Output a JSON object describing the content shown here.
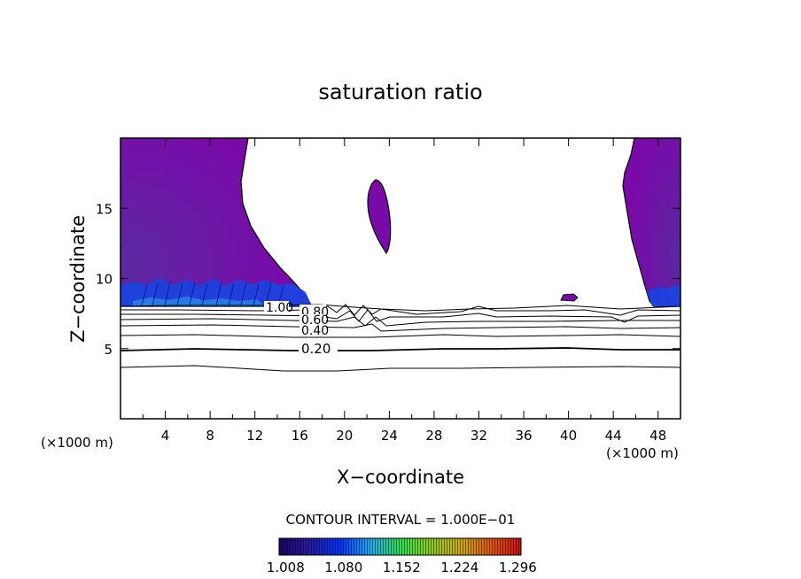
{
  "chart_data": {
    "type": "contour",
    "title": "saturation ratio",
    "xlabel": "X−coordinate",
    "ylabel": "Z−coordinate",
    "x_unit_left": "(×1000 m)",
    "x_unit_right": "(×1000 m)",
    "xlim": [
      0,
      50
    ],
    "ylim": [
      0,
      20
    ],
    "xticks": [
      "4",
      "8",
      "12",
      "16",
      "20",
      "24",
      "28",
      "32",
      "36",
      "40",
      "44",
      "48"
    ],
    "xtick_values": [
      4,
      8,
      12,
      16,
      20,
      24,
      28,
      32,
      36,
      40,
      44,
      48
    ],
    "yticks": [
      "5",
      "10",
      "15"
    ],
    "ytick_values": [
      5,
      10,
      15
    ],
    "contour_interval_text": "CONTOUR INTERVAL = 1.000E−01",
    "contour_labels": [
      {
        "text": "1.00",
        "x": 13.5,
        "z": 7.9
      },
      {
        "text": "0.80",
        "x": 17.5,
        "z": 7.6
      },
      {
        "text": "0.60",
        "x": 17.5,
        "z": 7.1
      },
      {
        "text": "0.40",
        "x": 17.5,
        "z": 6.3
      },
      {
        "text": "0.20",
        "x": 17.5,
        "z": 5.0
      }
    ],
    "contour_lines_z": [
      3.6,
      5.0,
      5.6,
      6.3,
      6.8,
      7.2,
      7.6,
      7.9
    ],
    "supersaturated_regions": [
      {
        "name": "left",
        "x_range": [
          0,
          17
        ],
        "z_range": [
          8,
          20
        ]
      },
      {
        "name": "right",
        "x_range": [
          45,
          50
        ],
        "z_range": [
          8,
          20
        ]
      },
      {
        "name": "cell",
        "x_range": [
          22,
          24
        ],
        "z_range": [
          11.8,
          17
        ]
      },
      {
        "name": "small",
        "x_range": [
          39,
          40.5
        ],
        "z_range": [
          8.4,
          8.9
        ]
      }
    ],
    "colorbar": {
      "ticks": [
        "1.008",
        "1.080",
        "1.152",
        "1.224",
        "1.296"
      ],
      "tick_values": [
        1.008,
        1.08,
        1.152,
        1.224,
        1.296
      ],
      "range": [
        1.0,
        1.3
      ],
      "colors": [
        "#1a0066",
        "#2a1aa0",
        "#0033ff",
        "#22aaee",
        "#33dd55",
        "#88cc22",
        "#ccaa11",
        "#dd5511",
        "#cc1111"
      ]
    },
    "fill_color": "#7a0aa8",
    "grid": false
  }
}
